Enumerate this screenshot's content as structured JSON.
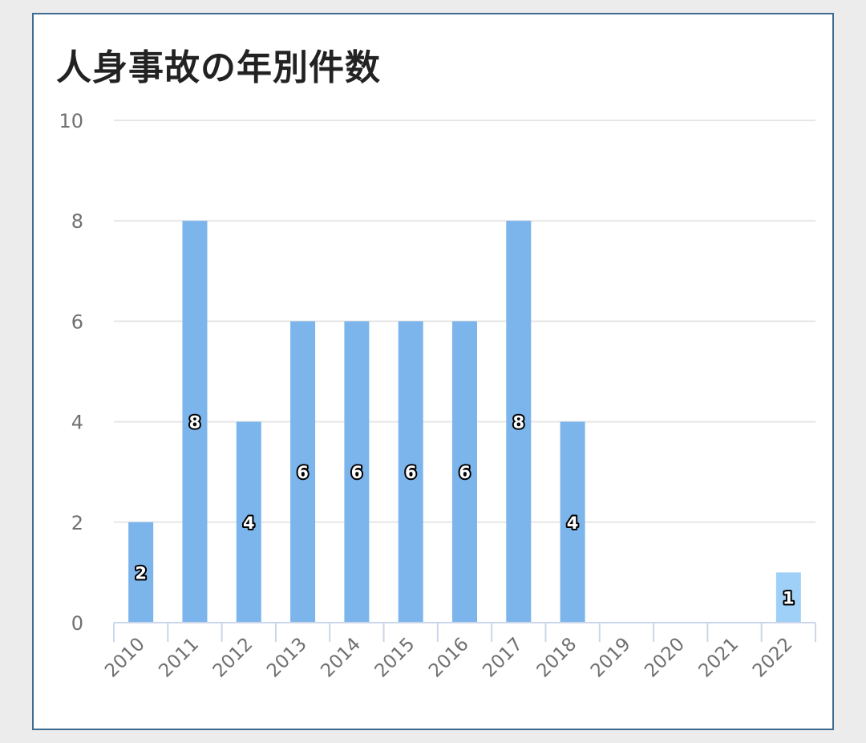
{
  "chart_data": {
    "type": "bar",
    "title": "人身事故の年別件数",
    "xlabel": "",
    "ylabel": "",
    "categories": [
      "2010",
      "2011",
      "2012",
      "2013",
      "2014",
      "2015",
      "2016",
      "2017",
      "2018",
      "2019",
      "2020",
      "2021",
      "2022"
    ],
    "values": [
      2,
      8,
      4,
      6,
      6,
      6,
      6,
      8,
      4,
      0,
      0,
      0,
      1
    ],
    "ylim": [
      0,
      10
    ],
    "yticks": [
      0,
      2,
      4,
      6,
      8,
      10
    ],
    "grid": true,
    "legend": "none",
    "colors": {
      "bar": "#7cb5ec",
      "bar_highlight": "#9fd0f7",
      "grid": "#e6e6e6",
      "axis": "#ccd6eb",
      "border": "#3f6b90"
    }
  }
}
